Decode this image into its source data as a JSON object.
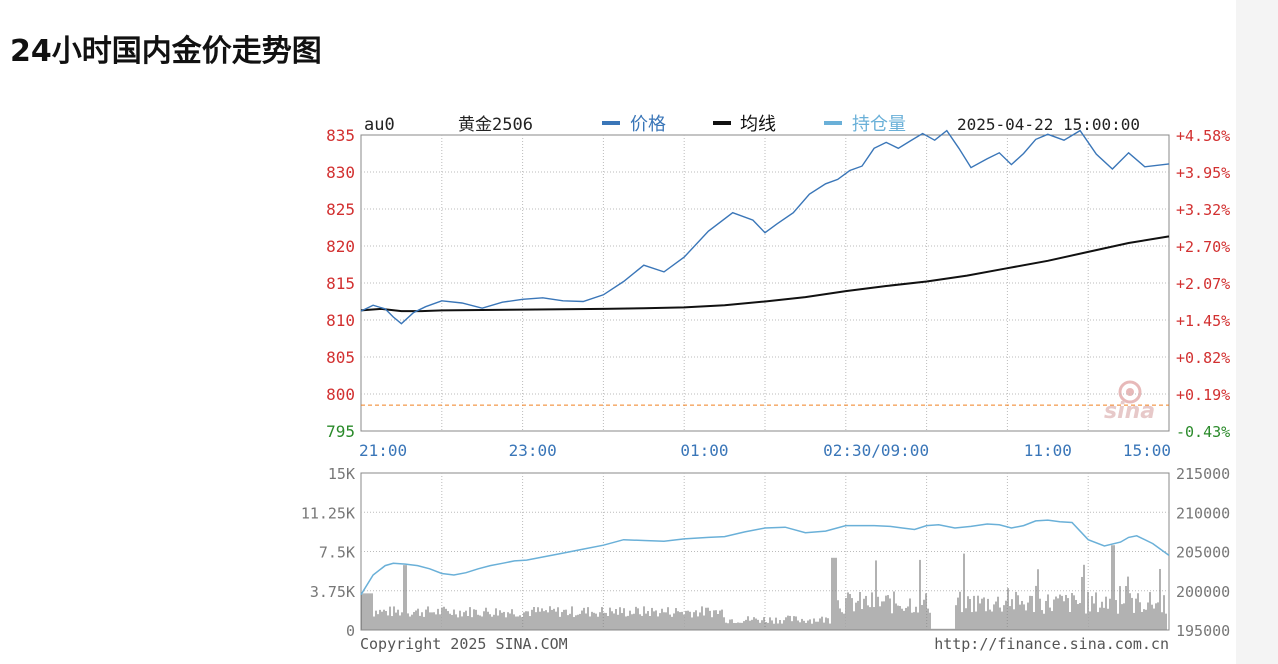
{
  "page": {
    "title": "24小时国内金价走势图"
  },
  "chart_data": {
    "type": "line",
    "symbol": "au0",
    "name": "黄金2506",
    "datetime": "2025-04-22 15:00:00",
    "legend": [
      {
        "label": "价格",
        "color": "#3a76b8"
      },
      {
        "label": "均线",
        "color": "#111111"
      },
      {
        "label": "持仓量",
        "color": "#6ab0d8"
      }
    ],
    "price_axis": {
      "ticks": [
        "835",
        "830",
        "825",
        "820",
        "815",
        "810",
        "805",
        "800",
        "795"
      ],
      "ylim": [
        795,
        835
      ]
    },
    "pct_axis": {
      "ticks": [
        "+4.58%",
        "+3.95%",
        "+3.32%",
        "+2.70%",
        "+2.07%",
        "+1.45%",
        "+0.82%",
        "+0.19%",
        "-0.43%"
      ]
    },
    "time_ticks": [
      "21:00",
      "23:00",
      "01:00",
      "02:30/09:00",
      "11:00",
      "15:00"
    ],
    "prev_close": 798.5,
    "price_series": {
      "name": "价格",
      "x": [
        0,
        3,
        6,
        8,
        10,
        13,
        16,
        20,
        25,
        30,
        35,
        40,
        45,
        50,
        55,
        60,
        65,
        70,
        75,
        80,
        86,
        92,
        97,
        100,
        103,
        107,
        111,
        115,
        118,
        121,
        124,
        127,
        130,
        133,
        136,
        139,
        142,
        145,
        148,
        151,
        155,
        158,
        161,
        164,
        167,
        170,
        174,
        178,
        182,
        186,
        190,
        194,
        200
      ],
      "values": [
        811.2,
        812,
        811.5,
        810.4,
        809.5,
        811,
        811.8,
        812.6,
        812.3,
        811.6,
        812.4,
        812.8,
        813,
        812.6,
        812.5,
        813.4,
        815.2,
        817.4,
        816.5,
        818.5,
        822,
        824.5,
        823.5,
        821.8,
        823,
        824.5,
        827,
        828.4,
        829,
        830.2,
        830.8,
        833.2,
        834,
        833.2,
        834.2,
        835.2,
        834.3,
        835.6,
        833.2,
        830.6,
        831.8,
        832.6,
        831,
        832.5,
        834.4,
        835.1,
        834.3,
        835.6,
        832.4,
        830.4,
        832.6,
        830.7,
        831.1
      ]
    },
    "avg_series": {
      "name": "均线",
      "x": [
        0,
        5,
        10,
        15,
        20,
        40,
        60,
        70,
        80,
        90,
        100,
        110,
        120,
        130,
        140,
        150,
        160,
        170,
        180,
        190,
        200
      ],
      "values": [
        811.3,
        811.5,
        811.2,
        811.2,
        811.3,
        811.4,
        811.5,
        811.6,
        811.7,
        812,
        812.5,
        813.1,
        813.9,
        814.6,
        815.2,
        816,
        817,
        818,
        819.2,
        820.4,
        821.3
      ]
    },
    "volume_axis": {
      "ticks": [
        "15K",
        "11.25K",
        "7.5K",
        "3.75K",
        "0"
      ],
      "ylim": [
        0,
        15000
      ]
    },
    "oi_axis": {
      "ticks": [
        "215000",
        "210000",
        "205000",
        "200000",
        "195000"
      ],
      "ylim": [
        195000,
        215000
      ]
    },
    "open_interest_series": {
      "name": "持仓量",
      "x": [
        0,
        3,
        6,
        8,
        11,
        14,
        17,
        20,
        23,
        26,
        29,
        32,
        35,
        38,
        41,
        45,
        50,
        55,
        60,
        65,
        70,
        75,
        80,
        86,
        90,
        95,
        100,
        105,
        110,
        115,
        120,
        124,
        127,
        131,
        134,
        137,
        140,
        143,
        147,
        151,
        155,
        158,
        161,
        164,
        167,
        170,
        173,
        176,
        180,
        184,
        188,
        190,
        192,
        196,
        200
      ],
      "values": [
        199500,
        202000,
        203200,
        203500,
        203400,
        203200,
        202800,
        202200,
        202000,
        202300,
        202800,
        203200,
        203500,
        203800,
        203900,
        204300,
        204800,
        205300,
        205800,
        206500,
        206400,
        206300,
        206600,
        206800,
        206900,
        207500,
        208000,
        208100,
        207400,
        207600,
        208300,
        208300,
        208300,
        208200,
        208000,
        207800,
        208300,
        208400,
        208000,
        208200,
        208500,
        208400,
        208000,
        208300,
        208900,
        209000,
        208800,
        208700,
        206500,
        205700,
        206200,
        206800,
        207000,
        206000,
        204500
      ]
    },
    "volume_bars_note": "",
    "footer_left": "Copyright 2025 SINA.COM",
    "footer_right": "http://finance.sina.com.cn",
    "watermark": "sina"
  }
}
